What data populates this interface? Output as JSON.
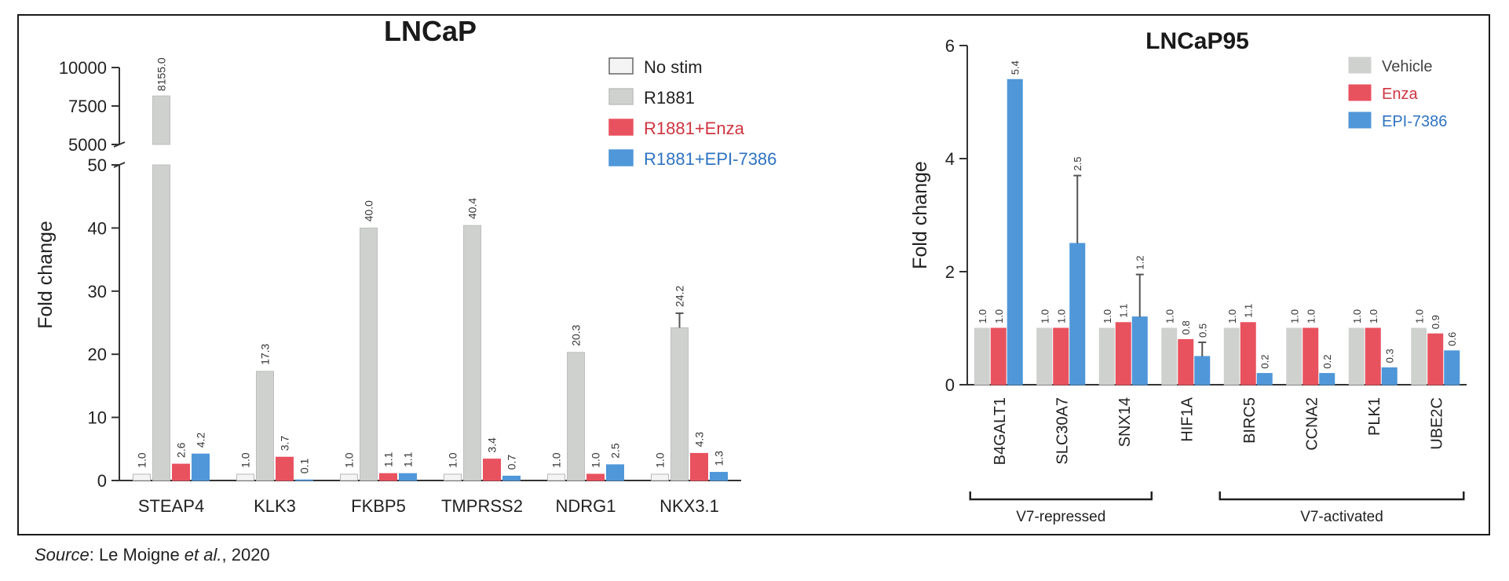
{
  "source": {
    "label": "Source",
    "text": ": Le Moigne ",
    "etal": "et al.",
    "year": ", 2020"
  },
  "colors": {
    "no_stim": "#f4f4f4",
    "r1881": "#cfd1cf",
    "enza": "#e8525f",
    "epi": "#4f97d8",
    "legend_text_red": "#cf3440",
    "legend_text_blue": "#2f73c2",
    "axis": "#333333"
  },
  "chart_data": [
    {
      "type": "bar",
      "title": "LNCaP",
      "ylabel": "Fold change",
      "xlabel": "",
      "ylim_lower": [
        0,
        50
      ],
      "ylim_upper": [
        5000,
        10000
      ],
      "yticks_lower": [
        "0",
        "10",
        "20",
        "30",
        "40",
        "50"
      ],
      "yticks_upper": [
        "5000",
        "7500",
        "10000"
      ],
      "categories": [
        "STEAP4",
        "KLK3",
        "FKBP5",
        "TMPRSS2",
        "NDRG1",
        "NKX3.1"
      ],
      "legend_position": "top-right",
      "series": [
        {
          "name": "No stim",
          "values": [
            1.0,
            1.0,
            1.0,
            1.0,
            1.0,
            1.0
          ],
          "labels": [
            "1.0",
            "1.0",
            "1.0",
            "1.0",
            "1.0",
            "1.0"
          ]
        },
        {
          "name": "R1881",
          "values": [
            8155.0,
            17.3,
            40.0,
            40.4,
            20.3,
            24.2
          ],
          "labels": [
            "8155.0",
            "17.3",
            "40.0",
            "40.4",
            "20.3",
            "24.2"
          ]
        },
        {
          "name": "R1881+Enza",
          "values": [
            2.6,
            3.7,
            1.1,
            3.4,
            1.0,
            4.3
          ],
          "labels": [
            "2.6",
            "3.7",
            "1.1",
            "3.4",
            "1.0",
            "4.3"
          ]
        },
        {
          "name": "R1881+EPI-7386",
          "values": [
            4.2,
            0.1,
            1.1,
            0.7,
            2.5,
            1.3
          ],
          "labels": [
            "4.2",
            "0.1",
            "1.1",
            "0.7",
            "2.5",
            "1.3"
          ]
        }
      ],
      "error_bars": [
        {
          "series": 1,
          "category": 5,
          "upper": 26.5
        }
      ]
    },
    {
      "type": "bar",
      "title": "LNCaP95",
      "ylabel": "Fold change",
      "xlabel": "",
      "ylim": [
        0,
        6
      ],
      "yticks": [
        "0",
        "2",
        "4",
        "6"
      ],
      "categories": [
        "B4GALT1",
        "SLC30A7",
        "SNX14",
        "HIF1A",
        "BIRC5",
        "CCNA2",
        "PLK1",
        "UBE2C"
      ],
      "legend_position": "top-right",
      "series": [
        {
          "name": "Vehicle",
          "values": [
            1.0,
            1.0,
            1.0,
            1.0,
            1.0,
            1.0,
            1.0,
            1.0
          ],
          "labels": [
            "1.0",
            "1.0",
            "1.0",
            "1.0",
            "1.0",
            "1.0",
            "1.0",
            "1.0"
          ]
        },
        {
          "name": "Enza",
          "values": [
            1.0,
            1.0,
            1.1,
            0.8,
            1.1,
            1.0,
            1.0,
            0.9
          ],
          "labels": [
            "1.0",
            "1.0",
            "1.1",
            "0.8",
            "1.1",
            "1.0",
            "1.0",
            "0.9"
          ]
        },
        {
          "name": "EPI-7386",
          "values": [
            5.4,
            2.5,
            1.2,
            0.5,
            0.2,
            0.2,
            0.3,
            0.6
          ],
          "labels": [
            "5.4",
            "2.5",
            "1.2",
            "0.5",
            "0.2",
            "0.2",
            "0.3",
            "0.6"
          ]
        }
      ],
      "error_bars": [
        {
          "series": 2,
          "category": 1,
          "upper": 3.7
        },
        {
          "series": 2,
          "category": 2,
          "upper": 1.95
        },
        {
          "series": 2,
          "category": 3,
          "upper": 0.75
        }
      ],
      "groups": [
        {
          "label": "V7-repressed",
          "from": 0,
          "to": 2
        },
        {
          "label": "V7-activated",
          "from": 4,
          "to": 7
        }
      ]
    }
  ]
}
